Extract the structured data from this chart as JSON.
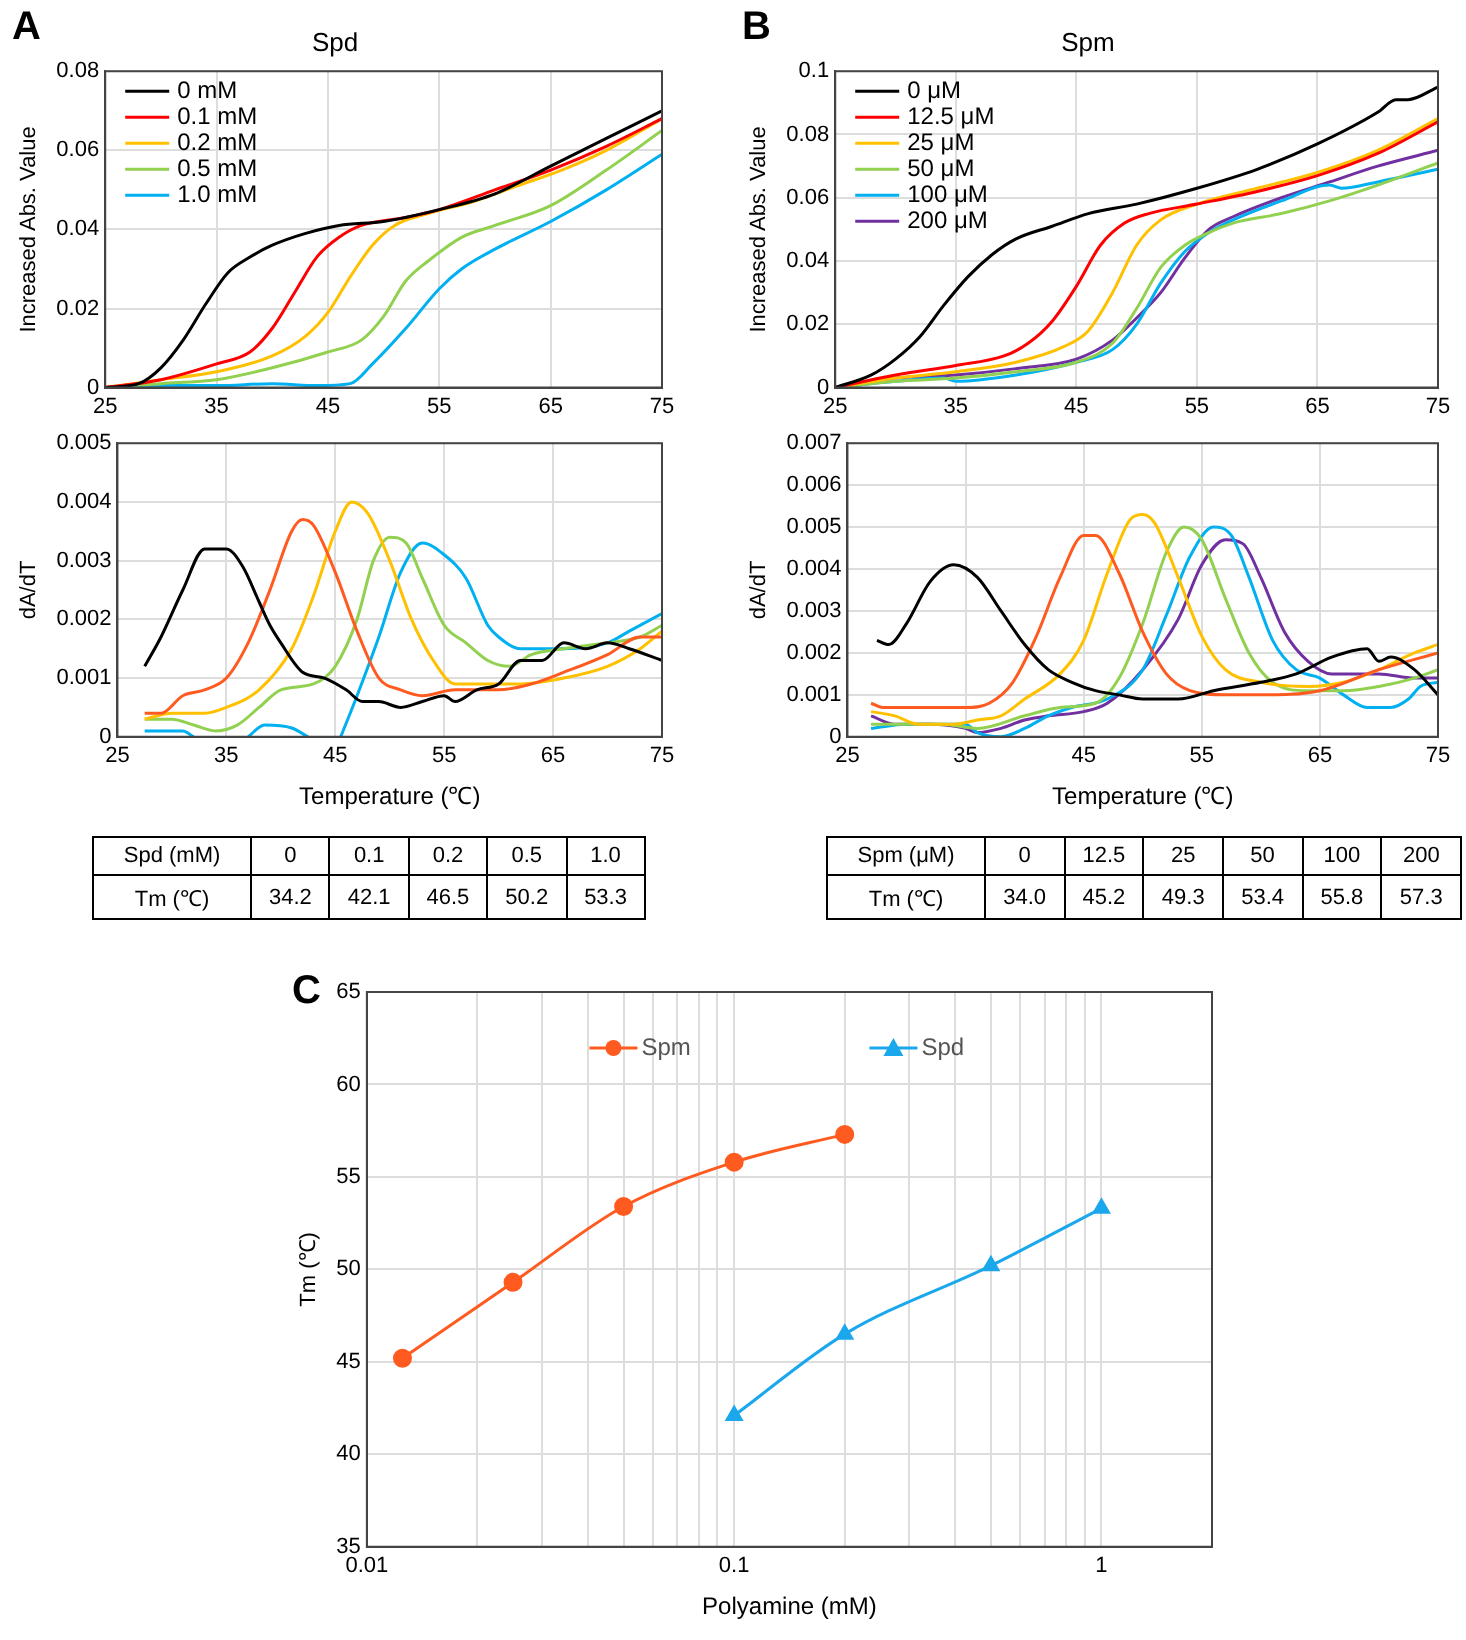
{
  "chart_data": [
    {
      "type": "line",
      "title": "Spd",
      "annotations": [
        "A"
      ],
      "ylabel": "Increased Abs. Value",
      "xlim": [
        25,
        75
      ],
      "xticks": [
        25,
        35,
        45,
        55,
        65,
        75
      ],
      "ylim": [
        0,
        0.08
      ],
      "yticks": [
        0,
        0.02,
        0.04,
        0.06,
        0.08
      ],
      "grid": true,
      "legend": "top left",
      "series": [
        {
          "name": "0 mM",
          "color": "#000000",
          "x": [
            25,
            28,
            30,
            32,
            34,
            36,
            38,
            40,
            43,
            46,
            50,
            55,
            60,
            65,
            70,
            75
          ],
          "values": [
            0,
            0.001,
            0.005,
            0.012,
            0.021,
            0.029,
            0.033,
            0.036,
            0.039,
            0.041,
            0.042,
            0.045,
            0.049,
            0.056,
            0.063,
            0.07
          ]
        },
        {
          "name": "0.1 mM",
          "color": "#ff0000",
          "x": [
            25,
            30,
            35,
            38,
            40,
            42,
            44,
            46,
            48,
            52,
            55,
            60,
            65,
            70,
            75
          ],
          "values": [
            0,
            0.002,
            0.006,
            0.009,
            0.015,
            0.024,
            0.033,
            0.038,
            0.041,
            0.043,
            0.045,
            0.05,
            0.055,
            0.061,
            0.068
          ]
        },
        {
          "name": "0.2 mM",
          "color": "#ffc000",
          "x": [
            25,
            30,
            35,
            40,
            43,
            45,
            47,
            49,
            51,
            54,
            58,
            62,
            66,
            70,
            75
          ],
          "values": [
            0,
            0.002,
            0.004,
            0.008,
            0.013,
            0.019,
            0.028,
            0.036,
            0.041,
            0.044,
            0.047,
            0.051,
            0.055,
            0.06,
            0.068
          ]
        },
        {
          "name": "0.5 mM",
          "color": "#92d050",
          "x": [
            25,
            30,
            35,
            40,
            45,
            48,
            50,
            52,
            54,
            57,
            60,
            65,
            70,
            75
          ],
          "values": [
            0,
            0.001,
            0.002,
            0.005,
            0.009,
            0.012,
            0.018,
            0.027,
            0.032,
            0.038,
            0.041,
            0.046,
            0.055,
            0.065
          ]
        },
        {
          "name": "1.0 mM",
          "color": "#00b0f0",
          "x": [
            25,
            30,
            35,
            40,
            44,
            47,
            49,
            52,
            55,
            57,
            60,
            65,
            70,
            75
          ],
          "values": [
            0,
            0.0005,
            0.0005,
            0.001,
            0.0005,
            0.001,
            0.006,
            0.015,
            0.025,
            0.03,
            0.035,
            0.042,
            0.05,
            0.059
          ]
        }
      ]
    },
    {
      "type": "line",
      "ylabel": "dA/dT",
      "xlabel": "Temperature (℃)",
      "xlim": [
        25,
        75
      ],
      "xticks": [
        25,
        35,
        45,
        55,
        65,
        75
      ],
      "ylim": [
        0,
        0.005
      ],
      "yticks": [
        0,
        0.001,
        0.002,
        0.003,
        0.004,
        0.005
      ],
      "grid": true,
      "series": [
        {
          "color": "#000000",
          "x": [
            27.5,
            29,
            31,
            33,
            35,
            36.5,
            38,
            39,
            40,
            42,
            44,
            46,
            47.5,
            49,
            51,
            53,
            55,
            56,
            58,
            60,
            62,
            64,
            66,
            68,
            70,
            72,
            75
          ],
          "values": [
            0.0012,
            0.0017,
            0.0025,
            0.0032,
            0.0032,
            0.0029,
            0.0023,
            0.0019,
            0.0016,
            0.0011,
            0.001,
            0.0008,
            0.0006,
            0.0006,
            0.0005,
            0.0006,
            0.0007,
            0.0006,
            0.0008,
            0.0009,
            0.0013,
            0.0013,
            0.0016,
            0.0015,
            0.0016,
            0.0015,
            0.0013
          ]
        },
        {
          "color": "#ff5a1f",
          "x": [
            27.5,
            29,
            31,
            33,
            35,
            37,
            39,
            41,
            42,
            43,
            45,
            47,
            49,
            51,
            53,
            56,
            60,
            63,
            66,
            70,
            73,
            75
          ],
          "values": [
            0.0004,
            0.0004,
            0.0007,
            0.0008,
            0.001,
            0.0016,
            0.0025,
            0.0035,
            0.0037,
            0.0036,
            0.0028,
            0.0018,
            0.001,
            0.0008,
            0.0007,
            0.0008,
            0.0008,
            0.0009,
            0.0011,
            0.0014,
            0.0017,
            0.0017
          ]
        },
        {
          "color": "#ffc000",
          "x": [
            27.5,
            30,
            33,
            35,
            38,
            41,
            43,
            45,
            46.5,
            48,
            50,
            52,
            54,
            56,
            58,
            62,
            66,
            70,
            73,
            75
          ],
          "values": [
            0.0003,
            0.0004,
            0.0004,
            0.0005,
            0.0008,
            0.0015,
            0.0024,
            0.0035,
            0.004,
            0.0038,
            0.003,
            0.002,
            0.0013,
            0.0009,
            0.0009,
            0.0009,
            0.001,
            0.0012,
            0.0015,
            0.0018
          ]
        },
        {
          "color": "#92d050",
          "x": [
            27.5,
            30,
            32,
            34,
            36,
            38,
            40,
            43,
            45,
            47,
            48.5,
            50,
            51.5,
            53,
            55,
            57,
            59,
            61,
            63,
            66,
            70,
            73,
            75
          ],
          "values": [
            0.0003,
            0.0003,
            0.0002,
            0.0001,
            0.0002,
            0.0005,
            0.0008,
            0.0009,
            0.0012,
            0.002,
            0.003,
            0.0034,
            0.0033,
            0.0027,
            0.0019,
            0.0016,
            0.0013,
            0.0012,
            0.0014,
            0.0015,
            0.0016,
            0.0017,
            0.0019
          ]
        },
        {
          "color": "#00b0f0",
          "x": [
            27.5,
            29,
            31,
            32,
            34,
            37,
            38.5,
            41,
            42.5,
            44,
            45.5,
            47,
            49,
            51,
            53,
            55,
            57,
            59,
            60,
            62,
            66,
            70,
            72,
            75
          ],
          "values": [
            0.0001,
            0.0001,
            0.0001,
            0,
            null,
            0,
            0.0002,
            0.00015,
            0,
            null,
            0,
            0.0007,
            0.0017,
            0.0028,
            0.0033,
            0.0031,
            0.0027,
            0.0019,
            0.0017,
            0.0015,
            0.0015,
            0.0016,
            0.0018,
            0.0021
          ]
        }
      ]
    },
    {
      "type": "other",
      "xlabel": "Spd (mM)",
      "ylabel": "Tm (℃)",
      "categories": [
        "0",
        "0.1",
        "0.2",
        "0.5",
        "1.0"
      ],
      "values": [
        34.2,
        42.1,
        46.5,
        50.2,
        53.3
      ],
      "data_labels": true
    },
    {
      "type": "line",
      "title": "Spm",
      "annotations": [
        "B"
      ],
      "ylabel": "Increased Abs. Value",
      "xlim": [
        25,
        75
      ],
      "xticks": [
        25,
        35,
        45,
        55,
        65,
        75
      ],
      "ylim": [
        0,
        0.1
      ],
      "yticks": [
        0,
        0.02,
        0.04,
        0.06,
        0.08,
        0.1
      ],
      "grid": true,
      "legend": "top left",
      "series": [
        {
          "name": "0 μM",
          "color": "#000000",
          "x": [
            25,
            28,
            30,
            32,
            34,
            36,
            38,
            40,
            43,
            46,
            50,
            55,
            60,
            65,
            70,
            71.5,
            72.5,
            75
          ],
          "values": [
            0,
            0.004,
            0.009,
            0.016,
            0.026,
            0.035,
            0.042,
            0.047,
            0.051,
            0.055,
            0.058,
            0.063,
            0.069,
            0.077,
            0.087,
            0.091,
            0.091,
            0.095
          ]
        },
        {
          "name": "12.5 μM",
          "color": "#ff0000",
          "x": [
            25,
            30,
            35,
            39,
            41,
            43,
            45,
            47,
            49,
            51,
            55,
            60,
            65,
            70,
            75
          ],
          "values": [
            0,
            0.004,
            0.007,
            0.01,
            0.014,
            0.021,
            0.032,
            0.045,
            0.052,
            0.055,
            0.058,
            0.062,
            0.067,
            0.074,
            0.084
          ]
        },
        {
          "name": "25 μM",
          "color": "#ffc000",
          "x": [
            25,
            30,
            35,
            40,
            44,
            46,
            48,
            50,
            52,
            55,
            60,
            65,
            70,
            75
          ],
          "values": [
            0,
            0.003,
            0.005,
            0.008,
            0.013,
            0.018,
            0.03,
            0.045,
            0.053,
            0.058,
            0.063,
            0.068,
            0.075,
            0.085
          ]
        },
        {
          "name": "50 μM",
          "color": "#92d050",
          "x": [
            25,
            30,
            35,
            40,
            45,
            48,
            50,
            52,
            54,
            56,
            58,
            62,
            66,
            70,
            75
          ],
          "values": [
            0,
            0.002,
            0.003,
            0.005,
            0.008,
            0.014,
            0.025,
            0.038,
            0.045,
            0.049,
            0.052,
            0.055,
            0.059,
            0.064,
            0.071
          ]
        },
        {
          "name": "100 μM",
          "color": "#00b0f0",
          "x": [
            25,
            30,
            34,
            35,
            40,
            45,
            48,
            50,
            52,
            54,
            56,
            58,
            62,
            66,
            67,
            70,
            75
          ],
          "values": [
            0,
            0.002,
            0.003,
            0.002,
            0.004,
            0.008,
            0.012,
            0.02,
            0.033,
            0.043,
            0.049,
            0.053,
            0.059,
            0.064,
            0.063,
            0.065,
            0.069
          ]
        },
        {
          "name": "200 μM",
          "color": "#7030a0",
          "x": [
            25,
            30,
            35,
            40,
            45,
            48,
            50,
            52,
            54,
            56,
            58,
            62,
            66,
            70,
            75
          ],
          "values": [
            0,
            0.003,
            0.004,
            0.006,
            0.009,
            0.015,
            0.022,
            0.03,
            0.041,
            0.05,
            0.054,
            0.06,
            0.065,
            0.07,
            0.075
          ]
        }
      ]
    },
    {
      "type": "line",
      "ylabel": "dA/dT",
      "xlabel": "Temperature (℃)",
      "xlim": [
        25,
        75
      ],
      "xticks": [
        25,
        35,
        45,
        55,
        65,
        75
      ],
      "ylim": [
        0,
        0.007
      ],
      "yticks": [
        0,
        0.001,
        0.002,
        0.003,
        0.004,
        0.005,
        0.006,
        0.007
      ],
      "grid": true,
      "series": [
        {
          "color": "#000000",
          "x": [
            27.5,
            28.5,
            30,
            32,
            34,
            36,
            38,
            40,
            42,
            44,
            46,
            48,
            50,
            53,
            56,
            60,
            63,
            66,
            69,
            70,
            71,
            73,
            75
          ],
          "values": [
            0.0023,
            0.0022,
            0.0027,
            0.0037,
            0.0041,
            0.0038,
            0.003,
            0.0022,
            0.0016,
            0.0013,
            0.0011,
            0.001,
            0.0009,
            0.0009,
            0.0011,
            0.0013,
            0.0015,
            0.0019,
            0.0021,
            0.0018,
            0.0019,
            0.0016,
            0.001
          ]
        },
        {
          "color": "#ff5a1f",
          "x": [
            27,
            28,
            30,
            32,
            35,
            37,
            39,
            41,
            43,
            45,
            46,
            48,
            50,
            52,
            54,
            57,
            60,
            65,
            70,
            75
          ],
          "values": [
            0.0008,
            0.0007,
            0.0007,
            0.0007,
            0.0007,
            0.0008,
            0.0013,
            0.0024,
            0.0038,
            0.0048,
            0.0048,
            0.0039,
            0.0025,
            0.0015,
            0.0011,
            0.001,
            0.001,
            0.0011,
            0.0016,
            0.002
          ]
        },
        {
          "color": "#ffc000",
          "x": [
            27,
            29,
            31,
            34,
            36,
            38,
            40,
            43,
            45,
            47,
            49,
            50,
            51,
            53,
            55,
            57,
            60,
            64,
            67,
            70,
            73,
            75
          ],
          "values": [
            0.0006,
            0.0005,
            0.0003,
            0.0003,
            0.0004,
            0.0005,
            0.0009,
            0.0015,
            0.0023,
            0.0039,
            0.0052,
            0.0053,
            0.0051,
            0.0038,
            0.0024,
            0.0016,
            0.0013,
            0.0012,
            0.0013,
            0.0016,
            0.002,
            0.0022
          ]
        },
        {
          "color": "#92d050",
          "x": [
            27,
            30,
            33,
            36,
            40,
            43,
            46,
            48,
            50,
            52,
            53.5,
            55,
            57,
            59,
            61,
            64,
            67,
            70,
            73,
            75
          ],
          "values": [
            0.0003,
            0.0003,
            0.0003,
            0.0002,
            0.0005,
            0.0007,
            0.0008,
            0.0014,
            0.0027,
            0.0044,
            0.005,
            0.0047,
            0.0033,
            0.002,
            0.0013,
            0.0011,
            0.0011,
            0.0012,
            0.0014,
            0.0016
          ]
        },
        {
          "color": "#00b0f0",
          "x": [
            27,
            30,
            33,
            35,
            36,
            38,
            40,
            42,
            44,
            47,
            50,
            52,
            54,
            56,
            57.5,
            59,
            61,
            63,
            65,
            67,
            69,
            71,
            72.5,
            73.5,
            75
          ],
          "values": [
            0.0002,
            0.0003,
            0.0003,
            0.0003,
            0.0001,
            0,
            0.0002,
            0.0005,
            0.0007,
            0.0009,
            0.0016,
            0.0029,
            0.0043,
            0.005,
            0.0048,
            0.0038,
            0.0023,
            0.0016,
            0.0014,
            0.001,
            0.0007,
            0.0007,
            0.0009,
            0.0012,
            0.0013
          ]
        },
        {
          "color": "#7030a0",
          "x": [
            27,
            29,
            32,
            35,
            36,
            38,
            40,
            42,
            45,
            47,
            50,
            53,
            55,
            57,
            58.5,
            60,
            62,
            64,
            66,
            70,
            73,
            75
          ],
          "values": [
            0.0005,
            0.0003,
            0.0003,
            0.0002,
            0.0001,
            0.0002,
            0.0004,
            0.0005,
            0.0006,
            0.0008,
            0.0016,
            0.0028,
            0.0041,
            0.0047,
            0.0046,
            0.0038,
            0.0025,
            0.0018,
            0.0015,
            0.0015,
            0.0014,
            0.0014
          ]
        }
      ]
    },
    {
      "type": "other",
      "xlabel": "Spm (μM)",
      "ylabel": "Tm (℃)",
      "categories": [
        "0",
        "12.5",
        "25",
        "50",
        "100",
        "200"
      ],
      "values": [
        34.0,
        45.2,
        49.3,
        53.4,
        55.8,
        57.3
      ],
      "value_labels": [
        "34.0",
        "45.2",
        "49.3",
        "53.4",
        "55.8",
        "57.3"
      ]
    },
    {
      "type": "line",
      "annotations": [
        "C"
      ],
      "xlabel": "Polyamine (mM)",
      "ylabel": "Tm (℃)",
      "log": "x",
      "xlim": [
        0.01,
        2
      ],
      "xticks": [
        0.01,
        {
          "value": 0.02,
          "label": null
        },
        {
          "value": 0.03,
          "label": null
        },
        {
          "value": 0.04,
          "label": null
        },
        {
          "value": 0.05,
          "label": null
        },
        {
          "value": 0.06,
          "label": null
        },
        {
          "value": 0.07,
          "label": null
        },
        {
          "value": 0.08,
          "label": null
        },
        {
          "value": 0.09,
          "label": null
        },
        0.1,
        {
          "value": 0.2,
          "label": null
        },
        {
          "value": 0.3,
          "label": null
        },
        {
          "value": 0.4,
          "label": null
        },
        {
          "value": 0.5,
          "label": null
        },
        {
          "value": 0.6,
          "label": null
        },
        {
          "value": 0.7,
          "label": null
        },
        {
          "value": 0.8,
          "label": null
        },
        {
          "value": 0.9,
          "label": null
        },
        1
      ],
      "ylim": [
        35,
        65
      ],
      "yticks": [
        35,
        40,
        45,
        50,
        55,
        60,
        65
      ],
      "grid": true,
      "legend": "top",
      "series": [
        {
          "name": "Spm",
          "color": "#ff5a1f",
          "marker": "circle",
          "x": [
            0.0125,
            0.025,
            0.05,
            0.1,
            0.2
          ],
          "values": [
            45.2,
            49.3,
            53.4,
            55.8,
            57.3
          ]
        },
        {
          "name": "Spd",
          "color": "#1aa7ec",
          "marker": "triangle",
          "x": [
            0.1,
            0.2,
            0.5,
            1.0
          ],
          "values": [
            42.1,
            46.5,
            50.2,
            53.3
          ]
        }
      ]
    }
  ]
}
